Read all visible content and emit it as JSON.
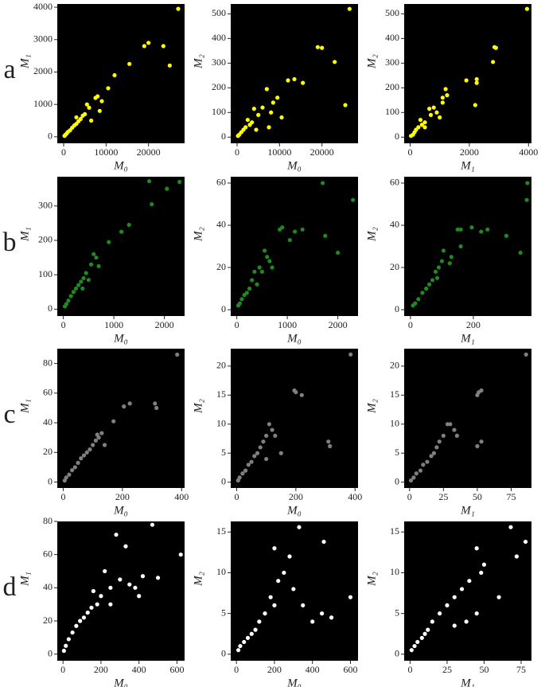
{
  "chart_data": [
    {
      "type": "scatter",
      "label": "a",
      "color": "#ffff00",
      "xlabel": "M₀",
      "ylabel": "M₁",
      "xlim": [
        -1500,
        28500
      ],
      "ylim": [
        -200,
        4100
      ],
      "xticks": [
        0,
        10000,
        20000
      ],
      "yticks": [
        0,
        1000,
        2000,
        3000,
        4000
      ],
      "x": [
        27000,
        20000,
        19000,
        23500,
        25000,
        15500,
        12000,
        10500,
        8000,
        7500,
        9000,
        6000,
        5000,
        4500,
        4000,
        3500,
        3000,
        2500,
        2000,
        1500,
        1000,
        700,
        400,
        200,
        6500,
        8500,
        3000,
        5500
      ],
      "values": [
        3950,
        2900,
        2800,
        2800,
        2200,
        2250,
        1900,
        1500,
        1250,
        1200,
        1100,
        900,
        700,
        650,
        550,
        480,
        400,
        350,
        280,
        200,
        150,
        100,
        60,
        30,
        500,
        800,
        600,
        1000
      ]
    },
    {
      "type": "scatter",
      "color": "#ffff00",
      "xlabel": "M₀",
      "ylabel": "M₂",
      "xlim": [
        -1500,
        28500
      ],
      "ylim": [
        -25,
        540
      ],
      "xticks": [
        0,
        10000,
        20000
      ],
      "yticks": [
        0,
        100,
        200,
        300,
        400,
        500
      ],
      "x": [
        26500,
        19000,
        20000,
        23000,
        25500,
        13500,
        12000,
        15500,
        9500,
        8500,
        8000,
        7000,
        6000,
        5000,
        4000,
        3500,
        3000,
        2500,
        2000,
        1500,
        1000,
        500,
        200,
        7500,
        10500,
        4500
      ],
      "values": [
        520,
        365,
        362,
        305,
        130,
        235,
        230,
        220,
        160,
        140,
        100,
        195,
        120,
        90,
        115,
        60,
        50,
        70,
        40,
        30,
        20,
        10,
        5,
        40,
        80,
        30
      ]
    },
    {
      "type": "scatter",
      "color": "#ffff00",
      "xlabel": "M₁",
      "ylabel": "M₂",
      "xlim": [
        -200,
        4100
      ],
      "ylim": [
        -25,
        540
      ],
      "xticks": [
        0,
        2000,
        4000
      ],
      "yticks": [
        0,
        100,
        200,
        300,
        400,
        500
      ],
      "x": [
        3950,
        2850,
        2900,
        2800,
        2200,
        2250,
        1900,
        2250,
        1200,
        1100,
        1250,
        1100,
        900,
        700,
        650,
        500,
        400,
        350,
        280,
        200,
        150,
        100,
        30,
        500,
        800,
        1000
      ],
      "values": [
        520,
        365,
        362,
        305,
        130,
        235,
        230,
        220,
        195,
        160,
        170,
        140,
        100,
        90,
        115,
        60,
        50,
        70,
        40,
        30,
        20,
        10,
        5,
        40,
        120,
        80
      ]
    },
    {
      "type": "scatter",
      "label": "b",
      "color": "#1f8a1f",
      "xlabel": "M₀",
      "ylabel": "M₁",
      "xlim": [
        -120,
        2400
      ],
      "ylim": [
        -20,
        385
      ],
      "xticks": [
        0,
        1000,
        2000
      ],
      "yticks": [
        0,
        100,
        200,
        300
      ],
      "x": [
        2300,
        1700,
        2050,
        1750,
        1300,
        1150,
        900,
        600,
        650,
        550,
        450,
        400,
        350,
        300,
        250,
        200,
        150,
        100,
        60,
        30,
        500,
        700,
        380
      ],
      "values": [
        370,
        372,
        350,
        305,
        245,
        225,
        195,
        160,
        150,
        130,
        105,
        90,
        80,
        70,
        60,
        50,
        38,
        25,
        15,
        8,
        85,
        125,
        60
      ]
    },
    {
      "type": "scatter",
      "color": "#1f8a1f",
      "xlabel": "M₀",
      "ylabel": "M₂",
      "xlim": [
        -120,
        2400
      ],
      "ylim": [
        -3,
        63
      ],
      "xticks": [
        0,
        1000,
        2000
      ],
      "yticks": [
        0,
        20,
        40,
        60
      ],
      "x": [
        2300,
        1700,
        1750,
        2000,
        1300,
        1150,
        900,
        850,
        1050,
        600,
        650,
        550,
        450,
        400,
        350,
        300,
        250,
        200,
        150,
        100,
        60,
        30,
        500,
        700
      ],
      "values": [
        52,
        60,
        35,
        27,
        38,
        37,
        39,
        38,
        33,
        25,
        23,
        28,
        20,
        12,
        18,
        14,
        10,
        8,
        7,
        5,
        3,
        2,
        18,
        20
      ]
    },
    {
      "type": "scatter",
      "color": "#1f8a1f",
      "xlabel": "M₁",
      "ylabel": "M₂",
      "xlim": [
        -20,
        385
      ],
      "ylim": [
        -3,
        63
      ],
      "xticks": [
        0,
        200
      ],
      "yticks": [
        0,
        20,
        40,
        60
      ],
      "x": [
        370,
        372,
        350,
        305,
        245,
        225,
        195,
        160,
        150,
        130,
        105,
        90,
        80,
        70,
        60,
        50,
        38,
        25,
        15,
        8,
        85,
        125,
        160,
        100
      ],
      "values": [
        52,
        60,
        27,
        35,
        38,
        37,
        39,
        38,
        38,
        25,
        28,
        20,
        18,
        14,
        12,
        10,
        8,
        5,
        3,
        2,
        15,
        22,
        30,
        23
      ]
    },
    {
      "type": "scatter",
      "label": "c",
      "color": "#808080",
      "xlabel": "M₀",
      "ylabel": "M₁",
      "xlim": [
        -20,
        410
      ],
      "ylim": [
        -4,
        90
      ],
      "xticks": [
        0,
        200,
        400
      ],
      "yticks": [
        0,
        20,
        40,
        60,
        80
      ],
      "x": [
        385,
        310,
        315,
        225,
        205,
        170,
        130,
        120,
        110,
        100,
        90,
        80,
        70,
        60,
        50,
        40,
        30,
        20,
        10,
        5,
        140,
        115
      ],
      "values": [
        86,
        53,
        50,
        53,
        51,
        41,
        33,
        30,
        28,
        25,
        22,
        20,
        18,
        16,
        13,
        10,
        8,
        5,
        3,
        1,
        25,
        32
      ]
    },
    {
      "type": "scatter",
      "color": "#808080",
      "xlabel": "M₀",
      "ylabel": "M₂",
      "xlim": [
        -20,
        410
      ],
      "ylim": [
        -1,
        23
      ],
      "xticks": [
        0,
        200,
        400
      ],
      "yticks": [
        0,
        5,
        10,
        15,
        20
      ],
      "x": [
        385,
        200,
        195,
        220,
        310,
        315,
        120,
        110,
        100,
        90,
        80,
        70,
        60,
        50,
        40,
        30,
        20,
        10,
        5,
        130,
        100,
        150
      ],
      "values": [
        22,
        15.5,
        15.8,
        15,
        7,
        6.2,
        9,
        10,
        8,
        7,
        6,
        5,
        4.5,
        3.5,
        3,
        2,
        1.5,
        0.8,
        0.3,
        8,
        4,
        5
      ]
    },
    {
      "type": "scatter",
      "color": "#808080",
      "xlabel": "M₁",
      "ylabel": "M₂",
      "xlim": [
        -4,
        90
      ],
      "ylim": [
        -1,
        23
      ],
      "xticks": [
        0,
        25,
        50,
        75
      ],
      "yticks": [
        0,
        5,
        10,
        15,
        20
      ],
      "x": [
        86,
        51,
        53,
        50,
        53,
        50,
        33,
        30,
        25,
        22,
        20,
        18,
        16,
        13,
        10,
        8,
        5,
        3,
        1,
        35,
        28
      ],
      "values": [
        22,
        15.5,
        15.8,
        15,
        7,
        6.2,
        9,
        10,
        8,
        7,
        6,
        5,
        4.5,
        3.5,
        3,
        2,
        1.5,
        0.8,
        0.3,
        8,
        10
      ]
    },
    {
      "type": "scatter",
      "label": "d",
      "color": "#ffffff",
      "xlabel": "M₀",
      "ylabel": "M₁",
      "xlim": [
        -30,
        640
      ],
      "ylim": [
        -4,
        80
      ],
      "xticks": [
        0,
        200,
        400,
        600
      ],
      "yticks": [
        0,
        20,
        40,
        60,
        80
      ],
      "x": [
        620,
        470,
        280,
        330,
        500,
        420,
        380,
        350,
        300,
        250,
        220,
        200,
        180,
        150,
        130,
        110,
        90,
        70,
        50,
        30,
        15,
        5,
        400,
        250,
        160
      ],
      "values": [
        60,
        78,
        72,
        65,
        46,
        47,
        40,
        42,
        45,
        40,
        50,
        35,
        30,
        28,
        25,
        22,
        20,
        17,
        13,
        9,
        5,
        2,
        35,
        30,
        38
      ]
    },
    {
      "type": "scatter",
      "color": "#ffffff",
      "xlabel": "M₀",
      "ylabel": "M₂",
      "xlim": [
        -30,
        640
      ],
      "ylim": [
        -0.8,
        16.3
      ],
      "xticks": [
        0,
        200,
        400,
        600
      ],
      "yticks": [
        0,
        5,
        10,
        15
      ],
      "x": [
        330,
        460,
        200,
        280,
        250,
        600,
        500,
        450,
        400,
        350,
        300,
        200,
        150,
        120,
        100,
        80,
        60,
        40,
        20,
        10,
        220,
        180
      ],
      "values": [
        15.6,
        13.8,
        13,
        12,
        10,
        7,
        4.5,
        5,
        4,
        6,
        8,
        6,
        5,
        4,
        3,
        2.5,
        2,
        1.5,
        1,
        0.5,
        9,
        7
      ]
    },
    {
      "type": "scatter",
      "color": "#ffffff",
      "xlabel": "M₁",
      "ylabel": "M₂",
      "xlim": [
        -4,
        82
      ],
      "ylim": [
        -0.8,
        16.3
      ],
      "xticks": [
        0,
        25,
        50,
        75
      ],
      "yticks": [
        0,
        5,
        10,
        15
      ],
      "x": [
        68,
        78,
        72,
        45,
        50,
        60,
        48,
        40,
        35,
        30,
        25,
        20,
        15,
        12,
        10,
        8,
        5,
        3,
        1,
        45,
        38,
        30
      ],
      "values": [
        15.6,
        13.8,
        12,
        13,
        11,
        7,
        10,
        9,
        8,
        7,
        6,
        5,
        4,
        3,
        2.5,
        2,
        1.5,
        1,
        0.5,
        5,
        4,
        3.5
      ]
    }
  ]
}
